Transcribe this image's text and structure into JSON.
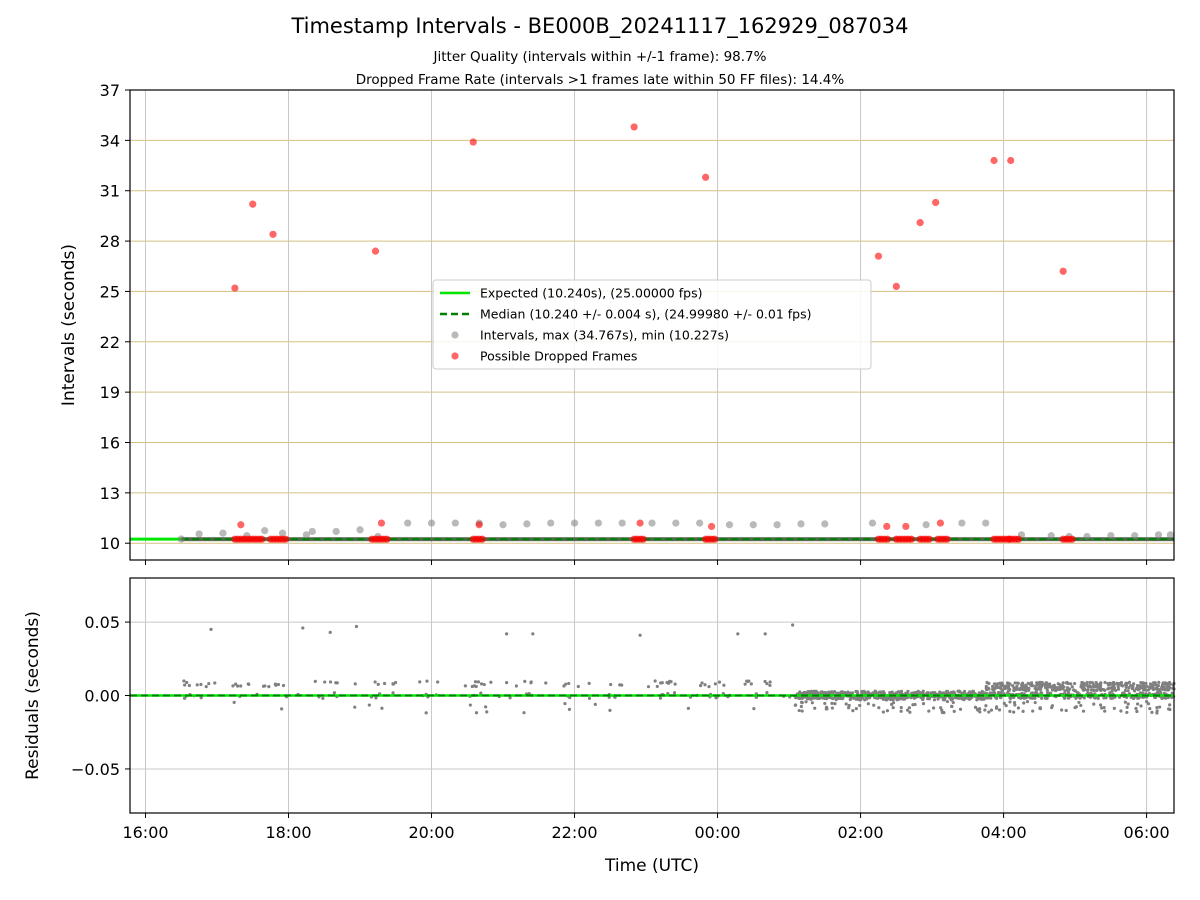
{
  "header": {
    "title": "Timestamp Intervals - BE000B_20241117_162929_087034",
    "subtitle1": "Jitter Quality (intervals within +/-1 frame): 98.7%",
    "subtitle2": "Dropped Frame Rate (intervals >1 frames late within 50 FF files): 14.4%"
  },
  "chart_data": [
    {
      "type": "scatter",
      "ylabel": "Intervals (seconds)",
      "xlabel": "",
      "x_unit": "hours since 16:00 UTC on 2024-11-17 shown as HH:MM",
      "xlim": [
        "15:47",
        "06:23"
      ],
      "ylim": [
        9,
        37
      ],
      "yticks": [
        10,
        13,
        16,
        19,
        22,
        25,
        28,
        31,
        34,
        37
      ],
      "xticks": [
        "16:00",
        "18:00",
        "20:00",
        "22:00",
        "00:00",
        "02:00",
        "04:00",
        "06:00"
      ],
      "grid": "both",
      "legend_position": "center",
      "legend": [
        "Expected (10.240s), (25.00000 fps)",
        "Median (10.240 +/- 0.004 s), (24.99980 +/- 0.01 fps)",
        "Intervals, max (34.767s), min (10.227s)",
        "Possible Dropped Frames"
      ],
      "colors": {
        "expected": "#00e600",
        "median": "#008000",
        "intervals": "#808080",
        "dropped": "#ff0000",
        "ygrid": "#d4c080",
        "xgrid": "#c8c8c8"
      },
      "expected_value": 10.24,
      "median_value": 10.24,
      "series": [
        {
          "name": "Intervals, max (34.767s), min (10.227s)",
          "points": [
            [
              "16:30",
              10.25
            ],
            [
              "16:45",
              10.55
            ],
            [
              "17:05",
              10.6
            ],
            [
              "17:25",
              10.45
            ],
            [
              "17:40",
              10.75
            ],
            [
              "17:55",
              10.6
            ],
            [
              "18:15",
              10.5
            ],
            [
              "18:20",
              10.7
            ],
            [
              "18:40",
              10.7
            ],
            [
              "19:00",
              10.8
            ],
            [
              "19:15",
              10.4
            ],
            [
              "19:40",
              11.2
            ],
            [
              "20:00",
              11.2
            ],
            [
              "20:20",
              11.2
            ],
            [
              "20:40",
              11.2
            ],
            [
              "21:00",
              11.1
            ],
            [
              "21:20",
              11.15
            ],
            [
              "21:40",
              11.2
            ],
            [
              "22:00",
              11.2
            ],
            [
              "22:20",
              11.2
            ],
            [
              "22:40",
              11.2
            ],
            [
              "23:05",
              11.2
            ],
            [
              "23:25",
              11.2
            ],
            [
              "23:45",
              11.2
            ],
            [
              "00:10",
              11.1
            ],
            [
              "00:30",
              11.1
            ],
            [
              "00:50",
              11.1
            ],
            [
              "01:10",
              11.15
            ],
            [
              "01:30",
              11.15
            ],
            [
              "02:10",
              11.2
            ],
            [
              "02:55",
              11.1
            ],
            [
              "03:25",
              11.2
            ],
            [
              "03:45",
              11.2
            ],
            [
              "04:15",
              10.5
            ],
            [
              "04:40",
              10.45
            ],
            [
              "04:55",
              10.4
            ],
            [
              "05:10",
              10.4
            ],
            [
              "05:30",
              10.45
            ],
            [
              "05:50",
              10.45
            ],
            [
              "06:10",
              10.5
            ],
            [
              "06:20",
              10.5
            ]
          ]
        },
        {
          "name": "Possible Dropped Frames",
          "points": [
            [
              "17:15",
              25.2
            ],
            [
              "17:20",
              11.1
            ],
            [
              "17:30",
              30.2
            ],
            [
              "17:47",
              28.4
            ],
            [
              "19:13",
              27.4
            ],
            [
              "19:18",
              11.2
            ],
            [
              "20:35",
              33.9
            ],
            [
              "20:40",
              11.1
            ],
            [
              "22:50",
              34.8
            ],
            [
              "22:55",
              11.2
            ],
            [
              "23:50",
              31.8
            ],
            [
              "23:55",
              11.0
            ],
            [
              "02:15",
              27.1
            ],
            [
              "02:22",
              11.0
            ],
            [
              "02:30",
              25.3
            ],
            [
              "02:38",
              11.0
            ],
            [
              "02:50",
              29.1
            ],
            [
              "03:03",
              30.3
            ],
            [
              "03:07",
              11.2
            ],
            [
              "03:52",
              32.8
            ],
            [
              "04:06",
              32.8
            ],
            [
              "04:50",
              26.2
            ]
          ],
          "baseline_clusters": [
            [
              "17:15",
              "17:40"
            ],
            [
              "17:45",
              "18:00"
            ],
            [
              "19:10",
              "19:25"
            ],
            [
              "20:35",
              "20:45"
            ],
            [
              "22:50",
              "23:00"
            ],
            [
              "23:50",
              "00:00"
            ],
            [
              "02:15",
              "02:25"
            ],
            [
              "02:30",
              "02:45"
            ],
            [
              "02:50",
              "03:00"
            ],
            [
              "03:05",
              "03:15"
            ],
            [
              "03:52",
              "04:05"
            ],
            [
              "04:05",
              "04:15"
            ],
            [
              "04:50",
              "05:00"
            ]
          ]
        }
      ]
    },
    {
      "type": "scatter",
      "ylabel": "Residuals (seconds)",
      "xlabel": "Time (UTC)",
      "xlim": [
        "15:47",
        "06:23"
      ],
      "ylim": [
        -0.08,
        0.08
      ],
      "yticks": [
        0.05,
        0.0,
        -0.05
      ],
      "ytick_labels": [
        "0.05",
        "0.00",
        "−0.05"
      ],
      "xticks": [
        "16:00",
        "18:00",
        "20:00",
        "22:00",
        "00:00",
        "02:00",
        "04:00",
        "06:00"
      ],
      "grid": "both",
      "series": [
        {
          "name": "Residuals",
          "outliers": [
            [
              "16:55",
              0.045
            ],
            [
              "18:12",
              0.046
            ],
            [
              "18:35",
              0.043
            ],
            [
              "18:57",
              0.047
            ],
            [
              "21:03",
              0.042
            ],
            [
              "21:25",
              0.042
            ],
            [
              "22:55",
              0.041
            ],
            [
              "00:17",
              0.042
            ],
            [
              "00:40",
              0.042
            ],
            [
              "01:03",
              0.048
            ]
          ],
          "dense_bands": [
            {
              "from": "16:30",
              "to": "01:05",
              "level": 0.008,
              "spread": 0.004,
              "sparse": true
            },
            {
              "from": "01:05",
              "to": "03:45",
              "level": 0.0,
              "spread": 0.006,
              "sparse": false
            },
            {
              "from": "03:45",
              "to": "06:23",
              "level": 0.006,
              "spread": 0.006,
              "sparse": false
            }
          ]
        }
      ]
    }
  ]
}
